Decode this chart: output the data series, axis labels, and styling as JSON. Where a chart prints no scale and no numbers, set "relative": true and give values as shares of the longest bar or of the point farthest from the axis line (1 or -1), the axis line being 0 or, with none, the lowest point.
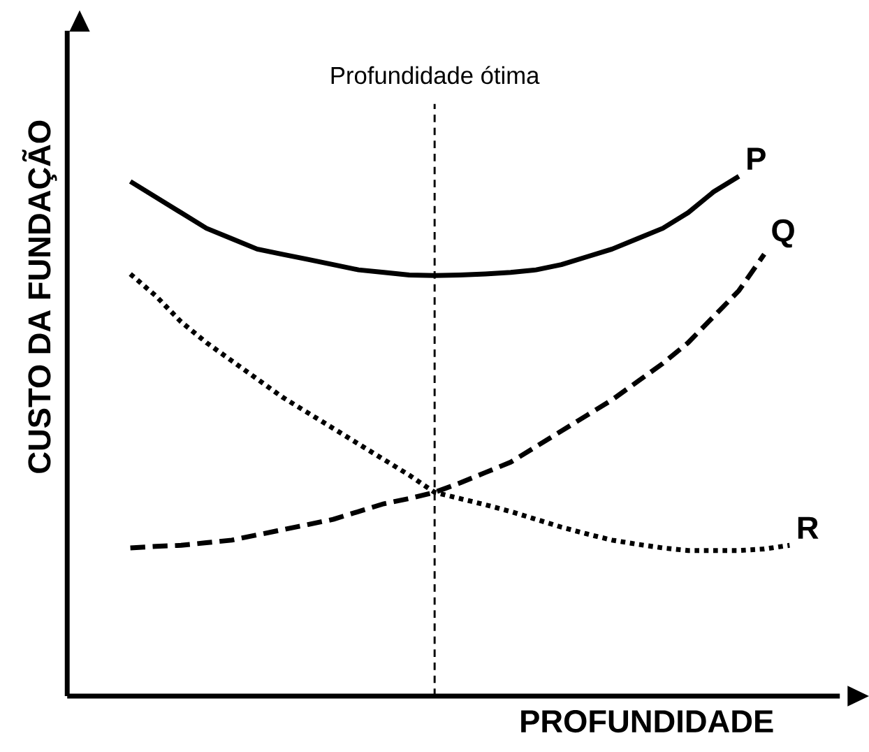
{
  "chart_data": {
    "type": "line",
    "xlabel": "PROFUNDIDADE",
    "ylabel": "CUSTO DA FUNDAÇÃO",
    "relative": true,
    "marker": "none",
    "categories": [
      null,
      null,
      null,
      null,
      null,
      null,
      null,
      null,
      null,
      null,
      null,
      null,
      null,
      null,
      null,
      null,
      null,
      null,
      null,
      null,
      null,
      null,
      null,
      null,
      null,
      null,
      null,
      null,
      null
    ],
    "series": [
      {
        "name": "P",
        "color": "#000000",
        "line_style": "solid",
        "values": [
          null,
          null,
          0.99,
          0.96,
          0.93,
          0.9,
          0.88,
          0.86,
          0.85,
          0.84,
          0.83,
          0.82,
          0.815,
          0.81,
          0.809,
          0.81,
          0.812,
          0.815,
          0.82,
          0.83,
          0.845,
          0.86,
          0.88,
          0.9,
          0.93,
          0.97,
          1,
          null,
          null
        ]
      },
      {
        "name": "Q",
        "color": "#000000",
        "line_style": "dashed",
        "values": [
          null,
          null,
          0.285,
          0.288,
          0.29,
          0.295,
          0.3,
          0.31,
          0.32,
          0.33,
          0.34,
          0.355,
          0.37,
          0.38,
          0.392,
          0.41,
          0.43,
          0.45,
          0.48,
          0.51,
          0.54,
          0.57,
          0.605,
          0.64,
          0.68,
          0.73,
          0.78,
          0.85,
          null
        ]
      },
      {
        "name": "R",
        "color": "#000000",
        "line_style": "dotted",
        "values": [
          null,
          null,
          0.812,
          0.77,
          0.72,
          0.68,
          0.645,
          0.61,
          0.575,
          0.545,
          0.515,
          0.485,
          0.455,
          0.425,
          0.392,
          0.38,
          0.368,
          0.355,
          0.34,
          0.325,
          0.312,
          0.3,
          0.292,
          0.285,
          0.28,
          0.28,
          0.28,
          0.283,
          0.29
        ]
      }
    ],
    "ref_lines": [
      {
        "axis": "x",
        "label": "Profundidade ótima",
        "line_style": "dashed",
        "color": "#000000"
      }
    ]
  }
}
